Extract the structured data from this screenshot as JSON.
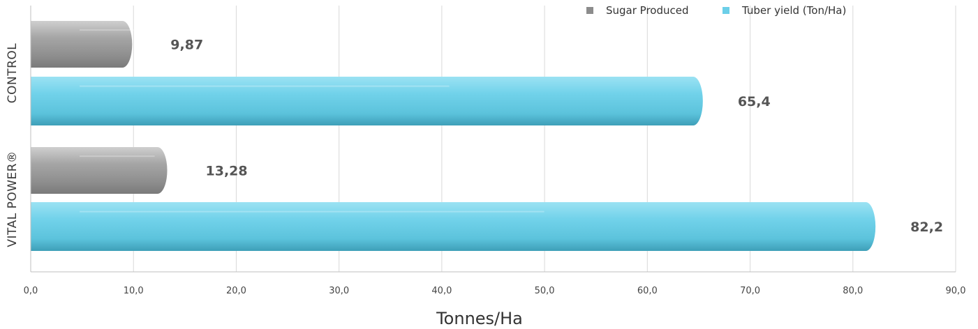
{
  "chart_data": {
    "type": "bar",
    "orientation": "horizontal",
    "categories": [
      "CONTROL",
      "VITAL POWER®"
    ],
    "series": [
      {
        "name": "Sugar Produced",
        "values": [
          9.87,
          13.28
        ],
        "labels": [
          "9,87",
          "13,28"
        ],
        "color": "#9a9a9a"
      },
      {
        "name": "Tuber yield (Ton/Ha)",
        "values": [
          65.4,
          82.2
        ],
        "labels": [
          "65,4",
          "82,2"
        ],
        "color": "#6ccfe8"
      }
    ],
    "xlabel": "Tonnes/Ha",
    "ylabel": "",
    "xlim": [
      0,
      90
    ],
    "ticks": [
      "0,0",
      "10,0",
      "20,0",
      "30,0",
      "40,0",
      "50,0",
      "60,0",
      "70,0",
      "80,0",
      "90,0"
    ],
    "grid": true,
    "legend_position": "top-right"
  }
}
